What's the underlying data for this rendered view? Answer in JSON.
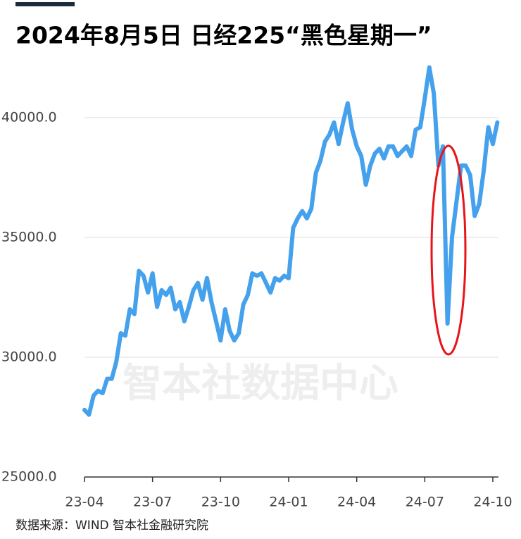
{
  "chart_data": {
    "type": "line",
    "title": "2024年8月5日 日经225“黑色星期一”",
    "watermark": "智本社数据中心",
    "source": "数据来源：WIND  智本社金融研究院",
    "color": "#45a1ec",
    "categories": [
      "23-04",
      null,
      null,
      null,
      null,
      null,
      null,
      null,
      null,
      null,
      null,
      null,
      null,
      null,
      null,
      "23-07",
      null,
      null,
      null,
      null,
      null,
      null,
      null,
      null,
      null,
      null,
      null,
      null,
      null,
      null,
      "23-10",
      null,
      null,
      null,
      null,
      null,
      null,
      null,
      null,
      null,
      null,
      null,
      null,
      null,
      null,
      "24-01",
      null,
      null,
      null,
      null,
      null,
      null,
      null,
      null,
      null,
      null,
      null,
      null,
      null,
      null,
      "24-04",
      null,
      null,
      null,
      null,
      null,
      null,
      null,
      null,
      null,
      null,
      null,
      null,
      null,
      null,
      "24-07",
      null,
      null,
      null,
      null,
      null,
      null,
      null,
      null,
      null,
      null,
      null,
      null,
      null,
      null,
      "24-10",
      null
    ],
    "values": [
      27800,
      27600,
      28400,
      28600,
      28500,
      29100,
      29100,
      29800,
      31000,
      30900,
      32000,
      31800,
      33600,
      33400,
      32700,
      33500,
      32100,
      32800,
      32600,
      32900,
      32000,
      32300,
      31500,
      32100,
      32800,
      33100,
      32400,
      33300,
      32300,
      31500,
      30700,
      32000,
      31100,
      30700,
      31000,
      32200,
      32600,
      33500,
      33400,
      33500,
      33100,
      32700,
      33300,
      33200,
      33400,
      33300,
      35400,
      35800,
      36100,
      35800,
      36200,
      37700,
      38200,
      39000,
      39300,
      39800,
      38900,
      39800,
      40600,
      39500,
      38800,
      38400,
      37200,
      38000,
      38500,
      38700,
      38300,
      38800,
      38800,
      38400,
      38600,
      38800,
      38400,
      39500,
      39600,
      40800,
      42100,
      41000,
      38000,
      38800,
      31400,
      35000,
      36500,
      38000,
      38000,
      37600,
      35900,
      36400,
      37800,
      39600,
      38900,
      39800
    ],
    "ylim": [
      25000,
      42500
    ],
    "yticks": [
      {
        "value": 25000,
        "label": "25000.0"
      },
      {
        "value": 30000,
        "label": "30000.0"
      },
      {
        "value": 35000,
        "label": "35000.0"
      },
      {
        "value": 40000,
        "label": "40000.0"
      }
    ],
    "grid": true
  }
}
